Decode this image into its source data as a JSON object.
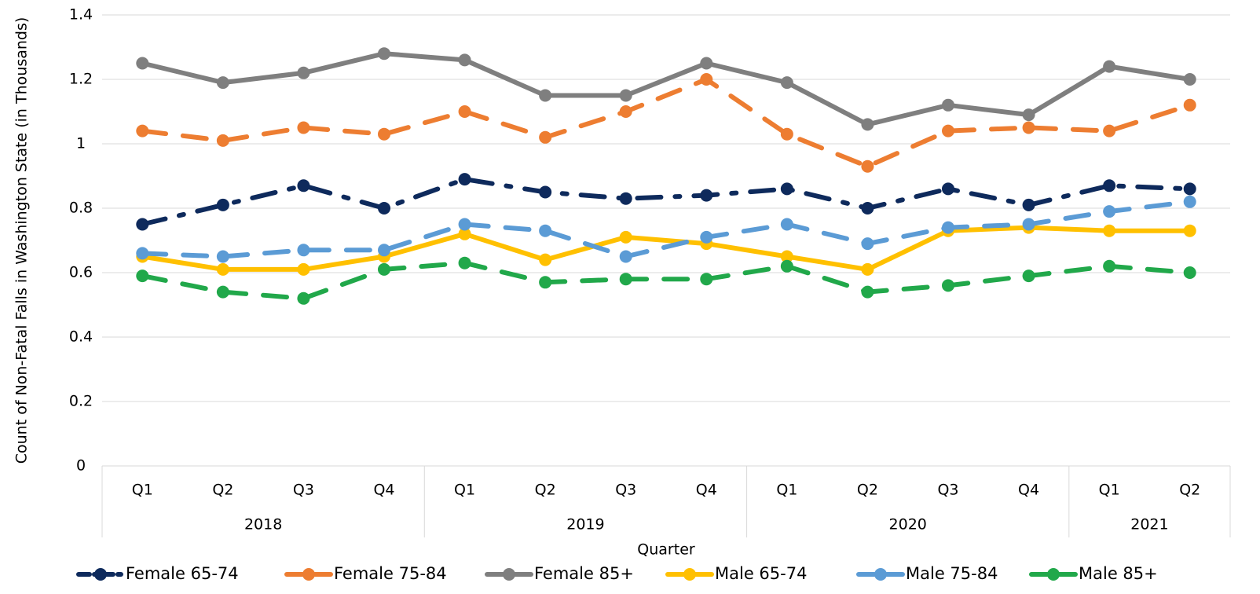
{
  "chart_data": {
    "type": "line",
    "y_label": "Count of Non-Fatal Falls in Washington State (in Thousands)",
    "x_label": "Quarter",
    "categories": [
      "Q1",
      "Q2",
      "Q3",
      "Q4",
      "Q1",
      "Q2",
      "Q3",
      "Q4",
      "Q1",
      "Q2",
      "Q3",
      "Q4",
      "Q1",
      "Q2"
    ],
    "groups": [
      {
        "label": "2018",
        "span": 4
      },
      {
        "label": "2019",
        "span": 4
      },
      {
        "label": "2020",
        "span": 4
      },
      {
        "label": "2021",
        "span": 2
      }
    ],
    "ylim": [
      0,
      1.4
    ],
    "yticks": [
      0,
      0.2,
      0.4,
      0.6,
      0.8,
      1,
      1.2,
      1.4
    ],
    "grid": true,
    "legend": "bottom",
    "series": [
      {
        "name": "Female 65-74",
        "color": "#0e2a5c",
        "line_style": "dash-dot",
        "values": [
          0.75,
          0.81,
          0.87,
          0.8,
          0.89,
          0.85,
          0.83,
          0.84,
          0.86,
          0.8,
          0.86,
          0.81,
          0.87,
          0.86
        ]
      },
      {
        "name": "Female 75-84",
        "color": "#ed7d31",
        "line_style": "dash",
        "values": [
          1.04,
          1.01,
          1.05,
          1.03,
          1.1,
          1.02,
          1.1,
          1.2,
          1.03,
          0.93,
          1.04,
          1.05,
          1.04,
          1.12
        ]
      },
      {
        "name": "Female 85+",
        "color": "#7f7f7f",
        "line_style": "solid",
        "values": [
          1.25,
          1.19,
          1.22,
          1.28,
          1.26,
          1.15,
          1.15,
          1.25,
          1.19,
          1.06,
          1.12,
          1.09,
          1.24,
          1.2
        ]
      },
      {
        "name": "Male 65-74",
        "color": "#ffc000",
        "line_style": "solid",
        "values": [
          0.65,
          0.61,
          0.61,
          0.65,
          0.72,
          0.64,
          0.71,
          0.69,
          0.65,
          0.61,
          0.73,
          0.74,
          0.73,
          0.73
        ]
      },
      {
        "name": "Male 75-84",
        "color": "#5b9bd5",
        "line_style": "dash",
        "values": [
          0.66,
          0.65,
          0.67,
          0.67,
          0.75,
          0.73,
          0.65,
          0.71,
          0.75,
          0.69,
          0.74,
          0.75,
          0.79,
          0.82
        ]
      },
      {
        "name": "Male 85+",
        "color": "#21a84a",
        "line_style": "dash",
        "values": [
          0.59,
          0.54,
          0.52,
          0.61,
          0.63,
          0.57,
          0.58,
          0.58,
          0.62,
          0.54,
          0.56,
          0.59,
          0.62,
          0.6
        ]
      }
    ]
  }
}
